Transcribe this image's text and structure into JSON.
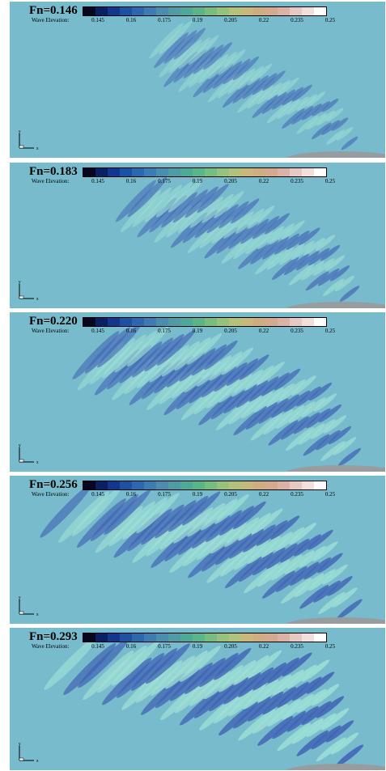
{
  "colorbar": {
    "label": "Wave Elevation:",
    "ticks": [
      "0.145",
      "0.16",
      "0.175",
      "0.19",
      "0.205",
      "0.22",
      "0.235",
      "0.25"
    ],
    "colors": [
      "#06061e",
      "#0b1f63",
      "#12378c",
      "#1c51a3",
      "#2c68b0",
      "#3c7cb3",
      "#4a8daf",
      "#4f9ca6",
      "#4daa98",
      "#59b58a",
      "#76bd80",
      "#95c27c",
      "#b3c27a",
      "#c8b97a",
      "#d0ad80",
      "#d6a98e",
      "#ddb2a6",
      "#e8c8c2",
      "#f2dfdc",
      "#ffffff"
    ]
  },
  "axis": {
    "y_label": "y",
    "x_label": "x"
  },
  "background_color": "#78bbcc",
  "panels": [
    {
      "fn": "Fn=0.146",
      "intensity": 0.45
    },
    {
      "fn": "Fn=0.183",
      "intensity": 0.6
    },
    {
      "fn": "Fn=0.220",
      "intensity": 0.75
    },
    {
      "fn": "Fn=0.256",
      "intensity": 0.88
    },
    {
      "fn": "Fn=0.293",
      "intensity": 1.0
    }
  ]
}
